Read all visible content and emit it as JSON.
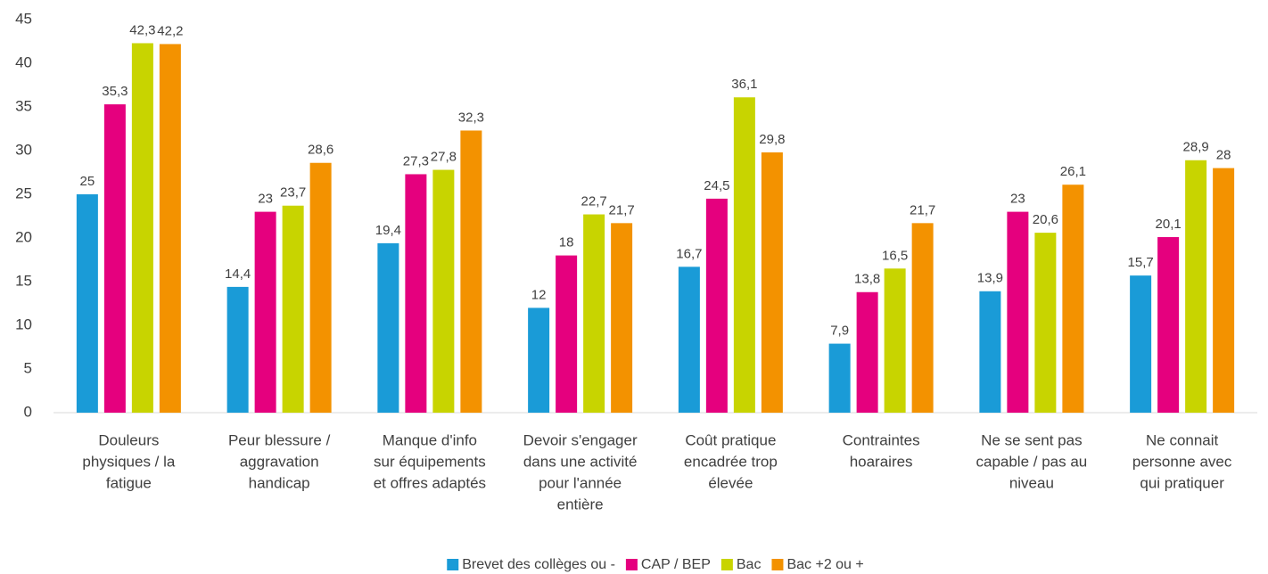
{
  "chart_data": {
    "type": "bar",
    "categories": [
      [
        "Douleurs",
        "physiques / la",
        "fatigue"
      ],
      [
        "Peur blessure /",
        "aggravation",
        "handicap"
      ],
      [
        "Manque d'info",
        "sur équipements",
        "et offres adaptés"
      ],
      [
        "Devoir s'engager",
        "dans une activité",
        "pour l'année",
        "entière"
      ],
      [
        "Coût pratique",
        "encadrée trop",
        "élevée"
      ],
      [
        "Contraintes",
        "hoaraires"
      ],
      [
        "Ne se sent pas",
        "capable / pas au",
        "niveau"
      ],
      [
        "Ne connait",
        "personne avec",
        "qui pratiquer"
      ]
    ],
    "series": [
      {
        "name": "Brevet des collèges ou -",
        "color": "#1a9bd7",
        "values": [
          25,
          14.4,
          19.4,
          12,
          16.7,
          7.9,
          13.9,
          15.7
        ],
        "value_labels": [
          "25",
          "14,4",
          "19,4",
          "12",
          "16,7",
          "7,9",
          "13,9",
          "15,7"
        ]
      },
      {
        "name": "CAP / BEP",
        "color": "#e5007e",
        "values": [
          35.3,
          23,
          27.3,
          18,
          24.5,
          13.8,
          23,
          20.1
        ],
        "value_labels": [
          "35,3",
          "23",
          "27,3",
          "18",
          "24,5",
          "13,8",
          "23",
          "20,1"
        ]
      },
      {
        "name": "Bac",
        "color": "#c8d400",
        "values": [
          42.3,
          23.7,
          27.8,
          22.7,
          36.1,
          16.5,
          20.6,
          28.9
        ],
        "value_labels": [
          "42,3",
          "23,7",
          "27,8",
          "22,7",
          "36,1",
          "16,5",
          "20,6",
          "28,9"
        ]
      },
      {
        "name": "Bac +2 ou +",
        "color": "#f39200",
        "values": [
          42.2,
          28.6,
          32.3,
          21.7,
          29.8,
          21.7,
          26.1,
          28
        ],
        "value_labels": [
          "42,2",
          "28,6",
          "32,3",
          "21,7",
          "29,8",
          "21,7",
          "26,1",
          "28"
        ]
      }
    ],
    "ylim": [
      0,
      45
    ],
    "yticks": [
      0,
      5,
      10,
      15,
      20,
      25,
      30,
      35,
      40,
      45
    ],
    "grid": false,
    "legend": "bottom"
  }
}
